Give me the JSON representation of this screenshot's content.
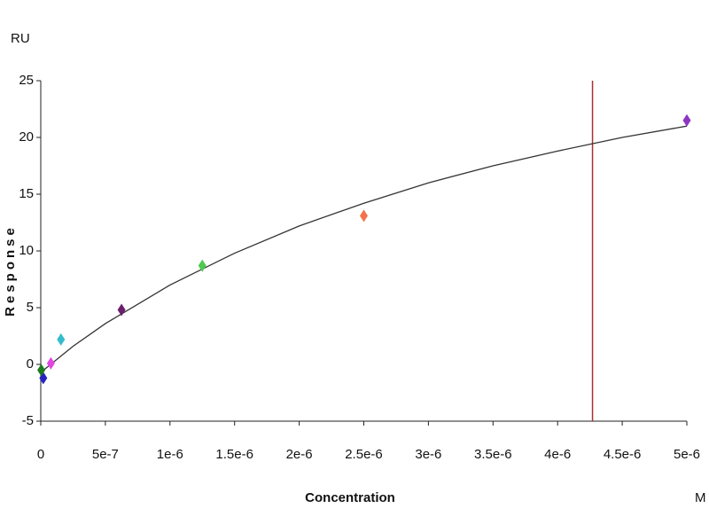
{
  "chart_data": {
    "type": "scatter",
    "y_unit": "RU",
    "x_unit": "M",
    "ylabel": "Response",
    "xlabel": "Concentration",
    "x": [
      5e-06,
      2.5e-06,
      1.25e-06,
      6.25e-07,
      1.5625e-07,
      7.8125e-08,
      1.953e-08,
      3.9e-09
    ],
    "values": [
      21.5,
      13.1,
      8.7,
      4.8,
      2.2,
      0.1,
      -1.2,
      -0.5
    ],
    "colors": [
      "#8e36c4",
      "#f2724e",
      "#4fc94f",
      "#6b1f6e",
      "#35bccc",
      "#e345e3",
      "#2323c4",
      "#1d7a1d"
    ],
    "fit": {
      "x": [
        0,
        2.5e-07,
        5e-07,
        1e-06,
        1.5e-06,
        2e-06,
        2.5e-06,
        3e-06,
        3.5e-06,
        4e-06,
        4.5e-06,
        5e-06
      ],
      "values": [
        -0.7,
        1.6,
        3.6,
        7.0,
        9.8,
        12.2,
        14.2,
        16.0,
        17.5,
        18.8,
        20.0,
        21.0
      ],
      "color": "#333333"
    },
    "marker_x": 4.27e-06,
    "marker_color": "#a83232",
    "xlim": [
      0,
      5e-06
    ],
    "ylim": [
      -5,
      25
    ],
    "xticks": [
      {
        "value": 0,
        "label": "0"
      },
      {
        "value": 5e-07,
        "label": "5e-7"
      },
      {
        "value": 1e-06,
        "label": "1e-6"
      },
      {
        "value": 1.5e-06,
        "label": "1.5e-6"
      },
      {
        "value": 2e-06,
        "label": "2e-6"
      },
      {
        "value": 2.5e-06,
        "label": "2.5e-6"
      },
      {
        "value": 3e-06,
        "label": "3e-6"
      },
      {
        "value": 3.5e-06,
        "label": "3.5e-6"
      },
      {
        "value": 4e-06,
        "label": "4e-6"
      },
      {
        "value": 4.5e-06,
        "label": "4.5e-6"
      },
      {
        "value": 5e-06,
        "label": "5e-6"
      }
    ],
    "yticks": [
      -5,
      0,
      5,
      10,
      15,
      20,
      25
    ]
  }
}
